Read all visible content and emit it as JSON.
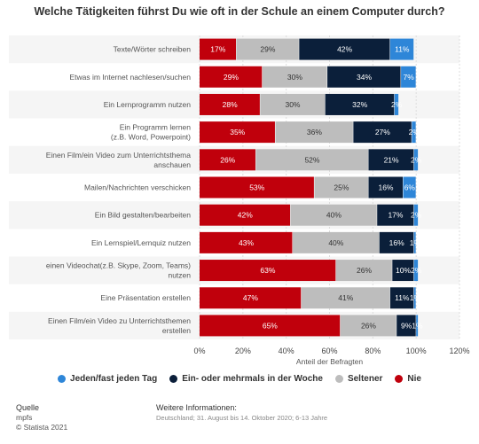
{
  "chart_data": {
    "type": "bar",
    "orientation": "horizontal",
    "stacked": true,
    "title": "Welche Tätigkeiten führst Du wie oft in der Schule an einem Computer durch?",
    "xlabel": "Anteil der Befragten",
    "xlim": [
      0,
      120
    ],
    "xticks": [
      "0%",
      "20%",
      "40%",
      "60%",
      "80%",
      "100%",
      "120%"
    ],
    "grid": true,
    "legend_position": "bottom",
    "categories": [
      [
        "Texte/Wörter schreiben"
      ],
      [
        "Etwas im Internet nachlesen/suchen"
      ],
      [
        "Ein Lernprogramm nutzen"
      ],
      [
        "Ein Programm lernen",
        "(z.B. Word, Powerpoint)"
      ],
      [
        "Einen Film/ein Video zum Unterrichtsthema",
        "anschauen"
      ],
      [
        "Mailen/Nachrichten verschicken"
      ],
      [
        "Ein Bild gestalten/bearbeiten"
      ],
      [
        "Ein Lernspiel/Lernquiz nutzen"
      ],
      [
        "einen Videochat(z.B. Skype, Zoom, Teams)",
        "nutzen"
      ],
      [
        "Eine Präsentation erstellen"
      ],
      [
        "Einen Film/ein Video zu Unterrichtsthemen",
        "erstellen"
      ]
    ],
    "series": [
      {
        "name": "Nie",
        "color": "#c0000c",
        "label_color": "#ffffff",
        "values": [
          17,
          29,
          28,
          35,
          26,
          53,
          42,
          43,
          63,
          47,
          65
        ]
      },
      {
        "name": "Seltener",
        "color": "#bdbdbd",
        "label_color": "#333333",
        "values": [
          29,
          30,
          30,
          36,
          52,
          25,
          40,
          40,
          26,
          41,
          26
        ]
      },
      {
        "name": "Ein- oder mehrmals in der Woche",
        "color": "#0b1f3a",
        "label_color": "#ffffff",
        "values": [
          42,
          34,
          32,
          27,
          21,
          16,
          17,
          16,
          10,
          11,
          9
        ]
      },
      {
        "name": "Jeden/fast jeden Tag",
        "color": "#2e86d8",
        "label_color": "#ffffff",
        "values": [
          11,
          7,
          2,
          2,
          2,
          6,
          2,
          1,
          2,
          1,
          1
        ]
      }
    ]
  },
  "legend": {
    "order": [
      3,
      2,
      1,
      0
    ]
  },
  "footer": {
    "source_head": "Quelle",
    "source_name": "mpfs",
    "copyright": "© Statista 2021",
    "info_head": "Weitere Informationen:",
    "info_text": "Deutschland; 31. August bis 14. Oktober 2020; 6-13 Jahre"
  }
}
